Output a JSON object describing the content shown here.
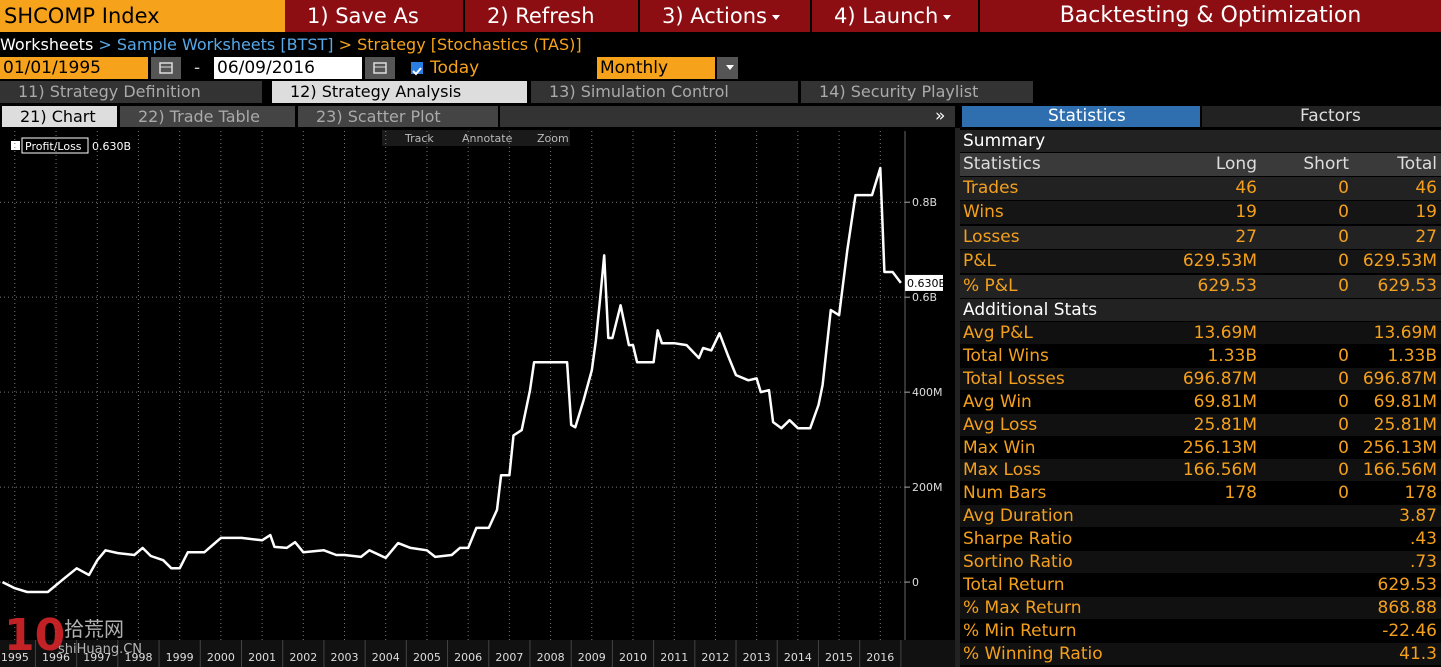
{
  "header": {
    "security": "SHCOMP Index",
    "buttons": [
      "1) Save As",
      "2) Refresh",
      "3) Actions",
      "4) Launch"
    ],
    "title": "Backtesting & Optimization"
  },
  "breadcrumb": {
    "items": [
      "Worksheets",
      "Sample Worksheets [BTST]",
      "Strategy [Stochastics (TAS)]"
    ],
    "separator": ">"
  },
  "dates": {
    "start": "01/01/1995",
    "separator": "-",
    "end": "06/09/2016",
    "today": "Today",
    "frequency": "Monthly"
  },
  "tabs": [
    "11) Strategy Definition",
    "12) Strategy Analysis",
    "13) Simulation Control",
    "14) Security Playlist"
  ],
  "subtabs": [
    "21) Chart",
    "22) Trade Table",
    "23) Scatter Plot"
  ],
  "collapse": "»",
  "panel_tabs": [
    "Statistics",
    "Factors"
  ],
  "chart_tools": [
    "Track",
    "Annotate",
    "Zoom"
  ],
  "chart_data": {
    "type": "line",
    "legend_value": "0.630B",
    "grid": true,
    "x": [
      1994.7,
      1995.0,
      1995.3,
      1995.8,
      1996.2,
      1996.5,
      1996.8,
      1997.0,
      1997.2,
      1997.5,
      1997.9,
      1998.1,
      1998.3,
      1998.6,
      1998.8,
      1999.0,
      1999.2,
      1999.6,
      1999.8,
      2000.0,
      2000.5,
      2001.0,
      2001.2,
      2001.3,
      2001.6,
      2001.8,
      2002.0,
      2002.5,
      2002.8,
      2003.0,
      2003.4,
      2003.6,
      2004.0,
      2004.3,
      2004.6,
      2005.0,
      2005.2,
      2005.6,
      2005.8,
      2006.0,
      2006.2,
      2006.5,
      2006.7,
      2006.8,
      2007.0,
      2007.1,
      2007.3,
      2007.5,
      2007.6,
      2008.4,
      2008.5,
      2008.6,
      2008.8,
      2009.0,
      2009.1,
      2009.2,
      2009.3,
      2009.4,
      2009.5,
      2009.7,
      2009.9,
      2010.0,
      2010.1,
      2010.5,
      2010.6,
      2010.7,
      2011.0,
      2011.3,
      2011.6,
      2011.7,
      2011.9,
      2012.1,
      2012.3,
      2012.5,
      2012.8,
      2013.0,
      2013.1,
      2013.3,
      2013.4,
      2013.6,
      2013.8,
      2014.0,
      2014.3,
      2014.5,
      2014.6,
      2014.8,
      2015.0,
      2015.2,
      2015.4,
      2015.8,
      2016.0,
      2016.1,
      2016.3,
      2016.5
    ],
    "series": [
      {
        "name": "Profit/Loss",
        "color": "#ffffff",
        "values": [
          0,
          -13,
          -21,
          -21,
          8,
          29,
          15,
          46,
          67,
          61,
          57,
          72,
          55,
          46,
          29,
          29,
          63,
          63,
          78,
          93,
          93,
          88,
          99,
          74,
          72,
          84,
          63,
          67,
          57,
          57,
          53,
          67,
          51,
          82,
          72,
          67,
          53,
          57,
          72,
          72,
          114,
          114,
          152,
          225,
          225,
          309,
          320,
          404,
          463,
          463,
          331,
          326,
          383,
          446,
          509,
          594,
          688,
          514,
          514,
          583,
          499,
          499,
          463,
          463,
          530,
          503,
          503,
          499,
          472,
          493,
          488,
          524,
          478,
          436,
          425,
          429,
          400,
          404,
          337,
          324,
          341,
          324,
          324,
          373,
          415,
          573,
          562,
          699,
          815,
          815,
          872,
          653,
          653,
          630
        ]
      }
    ],
    "xlim": [
      1994.64,
      2016.6
    ],
    "xticks": [
      1995,
      1996,
      1997,
      1998,
      1999,
      2000,
      2001,
      2002,
      2003,
      2004,
      2005,
      2006,
      2007,
      2008,
      2009,
      2010,
      2011,
      2012,
      2013,
      2014,
      2015,
      2016
    ],
    "ylim": [
      -122,
      950
    ],
    "yticks": [
      0,
      {
        "value": 200,
        "label": "200M"
      },
      {
        "value": 400,
        "label": "400M"
      },
      {
        "value": 600,
        "label": "0.6B"
      },
      {
        "value": 800,
        "label": "0.8B"
      }
    ]
  },
  "stats": {
    "summary_title": "Summary",
    "columns": [
      "Statistics",
      "Long",
      "Short",
      "Total"
    ],
    "summary_rows": [
      [
        "Trades",
        "46",
        "0",
        "46"
      ],
      [
        "Wins",
        "19",
        "0",
        "19"
      ],
      [
        "Losses",
        "27",
        "0",
        "27"
      ],
      [
        "P&L",
        "629.53M",
        "0",
        "629.53M"
      ],
      [
        "% P&L",
        "629.53",
        "0",
        "629.53"
      ]
    ],
    "additional_title": "Additional Stats",
    "additional_rows": [
      [
        "Avg P&L",
        "13.69M",
        null,
        "13.69M"
      ],
      [
        "Total Wins",
        "1.33B",
        "0",
        "1.33B"
      ],
      [
        "Total Losses",
        "696.87M",
        "0",
        "696.87M"
      ],
      [
        "Avg Win",
        "69.81M",
        "0",
        "69.81M"
      ],
      [
        "Avg Loss",
        "25.81M",
        "0",
        "25.81M"
      ],
      [
        "Max Win",
        "256.13M",
        "0",
        "256.13M"
      ],
      [
        "Max Loss",
        "166.56M",
        "0",
        "166.56M"
      ],
      [
        "Num Bars",
        "178",
        "0",
        "178"
      ],
      [
        "Avg Duration",
        null,
        null,
        "3.87"
      ],
      [
        "Sharpe Ratio",
        null,
        null,
        ".43"
      ],
      [
        "Sortino Ratio",
        null,
        null,
        ".73"
      ],
      [
        "Total Return",
        null,
        null,
        "629.53"
      ],
      [
        "% Max Return",
        null,
        null,
        "868.88"
      ],
      [
        "% Min Return",
        null,
        null,
        "-22.46"
      ],
      [
        "% Winning Ratio",
        null,
        null,
        "41.3"
      ]
    ]
  },
  "watermark": {
    "number": "10",
    "name": "拾荒网",
    "site": "shiHuang.CN"
  }
}
